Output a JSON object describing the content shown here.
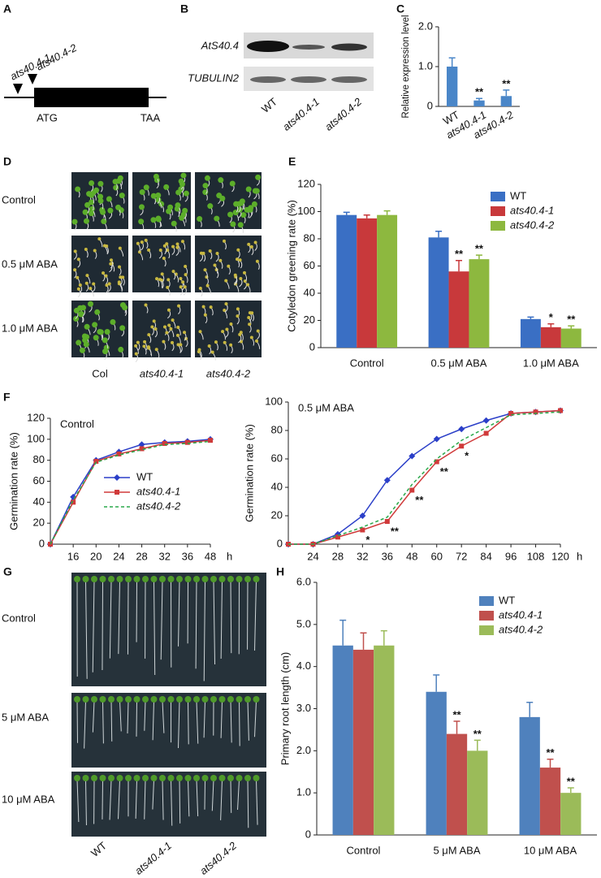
{
  "figure": {
    "panels": [
      "A",
      "B",
      "C",
      "D",
      "E",
      "F",
      "G",
      "H"
    ],
    "gene": {
      "alleles": [
        "ats40.4-1",
        "ats40.4-2"
      ],
      "start": "ATG",
      "stop": "TAA"
    },
    "gel": {
      "rows": [
        "AtS40.4",
        "TUBULIN2"
      ],
      "lanes": [
        "WT",
        "ats40.4-1",
        "ats40.4-2"
      ]
    },
    "photos_d": {
      "rows": [
        "Control",
        "0.5 μM ABA",
        "1.0 μM ABA"
      ],
      "cols": [
        "Col",
        "ats40.4-1",
        "ats40.4-2"
      ]
    },
    "photos_g": {
      "rows": [
        "Control",
        "5 μM ABA",
        "10 μM ABA"
      ],
      "cols": [
        "WT",
        "ats40.4-1",
        "ats40.4-2"
      ]
    }
  },
  "chart_data": [
    {
      "type": "bar",
      "ylabel": "Relative expression level",
      "categories": [
        "WT",
        "ats40.4-1",
        "ats40.4-2"
      ],
      "series": [
        {
          "color": "#4a86c8",
          "values": [
            1.0,
            0.15,
            0.26
          ],
          "errors": [
            0.22,
            0.05,
            0.15
          ],
          "significance": [
            null,
            "**",
            "**"
          ]
        }
      ],
      "ylim": [
        0,
        2
      ],
      "yticks": [
        0,
        {
          "value": 1,
          "label": "1.0"
        },
        {
          "value": 2,
          "label": "2.0"
        }
      ]
    },
    {
      "type": "bar",
      "ylabel": "Cotyledon greening rate (%)",
      "categories": [
        "Control",
        "0.5 μM ABA",
        "1.0 μM ABA"
      ],
      "series": [
        {
          "name": "WT",
          "color": "#3a6fc4",
          "values": [
            97.5,
            81,
            21
          ],
          "errors": [
            2,
            4.5,
            1.5
          ],
          "significance": [
            null,
            null,
            null
          ]
        },
        {
          "name": "ats40.4-1",
          "color": "#c8393b",
          "values": [
            95,
            56,
            15
          ],
          "errors": [
            2.5,
            8,
            2.5
          ],
          "significance": [
            null,
            "**",
            "*"
          ]
        },
        {
          "name": "ats40.4-2",
          "color": "#8db83f",
          "values": [
            97.5,
            65,
            14
          ],
          "errors": [
            3,
            3,
            2
          ],
          "significance": [
            null,
            "**",
            "**"
          ]
        }
      ],
      "ylim": [
        0,
        120
      ],
      "yticks": [
        0,
        20,
        40,
        60,
        80,
        100,
        120
      ],
      "legend": "upper right"
    },
    {
      "type": "line",
      "title": "Control",
      "ylabel": "Germination rate (%)",
      "xlabel": "h",
      "categories": [
        null,
        "16",
        "20",
        "24",
        "28",
        "32",
        "36",
        "48"
      ],
      "series": [
        {
          "name": "WT",
          "color": "#2b3fc8",
          "marker": "diamond",
          "values": [
            0,
            45,
            80,
            88,
            95,
            97,
            98,
            100
          ]
        },
        {
          "name": "ats40.4-1",
          "color": "#d03a3a",
          "marker": "square",
          "values": [
            0,
            40,
            79,
            86,
            91,
            96,
            97,
            99
          ]
        },
        {
          "name": "ats40.4-2",
          "color": "#2aa84a",
          "dash": true,
          "values": [
            0,
            42,
            78,
            85,
            90,
            95,
            96,
            98
          ]
        }
      ],
      "ylim": [
        0,
        120
      ],
      "yticks": [
        0,
        20,
        40,
        60,
        80,
        100,
        120
      ],
      "legend": "right"
    },
    {
      "type": "line",
      "title": "0.5 μM ABA",
      "ylabel": "Germination rate (%)",
      "xlabel": "h",
      "categories": [
        null,
        "24",
        "28",
        "32",
        "36",
        "48",
        "60",
        "72",
        "84",
        "96",
        "108",
        "120"
      ],
      "series": [
        {
          "name": "WT",
          "color": "#2b3fc8",
          "marker": "diamond",
          "values": [
            0,
            0,
            7,
            20,
            45,
            62,
            74,
            81,
            87,
            92,
            93,
            94
          ]
        },
        {
          "name": "ats40.4-1",
          "color": "#d03a3a",
          "marker": "square",
          "values": [
            0,
            0,
            5,
            10,
            16,
            38,
            58,
            69,
            78,
            92,
            93,
            94
          ],
          "significance": [
            null,
            null,
            null,
            "*",
            "**",
            "**",
            "**",
            "*",
            null,
            null,
            null,
            null
          ]
        },
        {
          "name": "ats40.4-2",
          "color": "#2aa84a",
          "dash": true,
          "values": [
            0,
            0,
            6,
            12,
            19,
            42,
            60,
            73,
            82,
            91,
            92,
            93
          ]
        }
      ],
      "ylim": [
        0,
        100
      ],
      "yticks": [
        0,
        20,
        40,
        60,
        80,
        100
      ]
    },
    {
      "type": "bar",
      "ylabel": "Primary root length (cm)",
      "categories": [
        "Control",
        "5 μM ABA",
        "10 μM ABA"
      ],
      "series": [
        {
          "name": "WT",
          "color": "#4f81bd",
          "values": [
            4.5,
            3.4,
            2.8
          ],
          "errors": [
            0.6,
            0.4,
            0.35
          ],
          "significance": [
            null,
            null,
            null
          ]
        },
        {
          "name": "ats40.4-1",
          "color": "#c0504d",
          "values": [
            4.4,
            2.4,
            1.6
          ],
          "errors": [
            0.4,
            0.3,
            0.2
          ],
          "significance": [
            null,
            "**",
            "**"
          ]
        },
        {
          "name": "ats40.4-2",
          "color": "#9bbb59",
          "values": [
            4.5,
            2.0,
            1.0
          ],
          "errors": [
            0.35,
            0.25,
            0.12
          ],
          "significance": [
            null,
            "**",
            "**"
          ]
        }
      ],
      "ylim": [
        0,
        6
      ],
      "yticks": [
        0,
        {
          "value": 1,
          "label": "1.0"
        },
        {
          "value": 2,
          "label": "2.0"
        },
        {
          "value": 3,
          "label": "3.0"
        },
        {
          "value": 4,
          "label": "4.0"
        },
        {
          "value": 5,
          "label": "5.0"
        },
        {
          "value": 6,
          "label": "6.0"
        }
      ],
      "legend": "upper right"
    }
  ]
}
